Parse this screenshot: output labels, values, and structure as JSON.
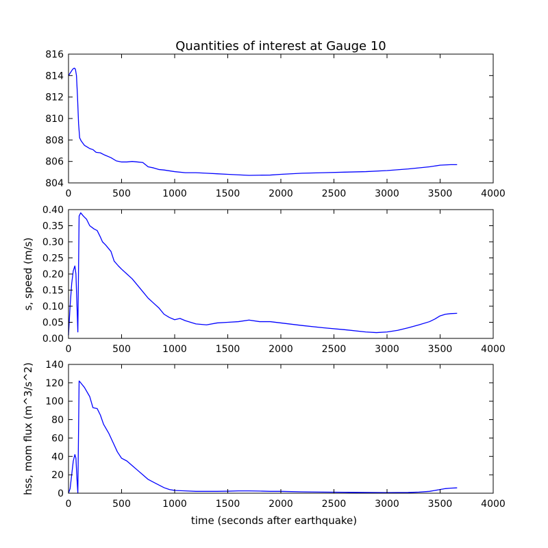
{
  "title": "Quantities of interest at Gauge 10",
  "colors": {
    "series": "#0000ff",
    "axes": "#000000",
    "background": "#ffffff"
  },
  "chart_data": [
    {
      "type": "line",
      "title": "Quantities of interest at Gauge 10",
      "xlabel": "",
      "ylabel": "",
      "xlim": [
        0,
        4000
      ],
      "ylim": [
        804,
        816
      ],
      "xticks": [
        "0",
        "500",
        "1000",
        "1500",
        "2000",
        "2500",
        "3000",
        "3500",
        "4000"
      ],
      "yticks": [
        "804",
        "806",
        "808",
        "810",
        "812",
        "814",
        "816"
      ],
      "grid": false,
      "x": [
        0,
        20,
        40,
        55,
        65,
        75,
        85,
        95,
        105,
        120,
        150,
        200,
        230,
        260,
        300,
        340,
        400,
        450,
        500,
        550,
        600,
        650,
        700,
        750,
        800,
        850,
        900,
        1000,
        1100,
        1200,
        1300,
        1400,
        1500,
        1600,
        1700,
        1800,
        1900,
        2000,
        2200,
        2400,
        2600,
        2800,
        3000,
        3200,
        3400,
        3500,
        3600,
        3660
      ],
      "series": [
        {
          "values": [
            814.0,
            814.3,
            814.6,
            814.7,
            814.6,
            814.0,
            812.0,
            809.5,
            808.2,
            807.9,
            807.5,
            807.2,
            807.1,
            806.85,
            806.8,
            806.6,
            806.35,
            806.05,
            805.95,
            805.95,
            806.0,
            805.95,
            805.9,
            805.5,
            805.4,
            805.25,
            805.2,
            805.05,
            804.95,
            804.95,
            804.9,
            804.85,
            804.8,
            804.75,
            804.7,
            804.72,
            804.73,
            804.8,
            804.9,
            804.95,
            805.0,
            805.05,
            805.15,
            805.3,
            805.5,
            805.65,
            805.7,
            805.7
          ]
        }
      ]
    },
    {
      "type": "line",
      "xlabel": "",
      "ylabel": "s, speed (m/s)",
      "xlim": [
        0,
        4000
      ],
      "ylim": [
        0,
        0.4
      ],
      "xticks": [
        "0",
        "500",
        "1000",
        "1500",
        "2000",
        "2500",
        "3000",
        "3500",
        "4000"
      ],
      "yticks": [
        "0.00",
        "0.05",
        "0.10",
        "0.15",
        "0.20",
        "0.25",
        "0.30",
        "0.35",
        "0.40"
      ],
      "grid": false,
      "x": [
        0,
        15,
        30,
        45,
        60,
        70,
        80,
        88,
        100,
        115,
        140,
        170,
        200,
        240,
        270,
        300,
        320,
        350,
        400,
        430,
        470,
        500,
        550,
        600,
        650,
        700,
        750,
        800,
        850,
        900,
        950,
        1000,
        1050,
        1100,
        1200,
        1300,
        1400,
        1500,
        1600,
        1700,
        1800,
        1900,
        2000,
        2200,
        2400,
        2600,
        2800,
        2900,
        3000,
        3100,
        3200,
        3300,
        3400,
        3450,
        3500,
        3550,
        3600,
        3660
      ],
      "series": [
        {
          "values": [
            0.01,
            0.1,
            0.17,
            0.21,
            0.225,
            0.2,
            0.1,
            0.02,
            0.38,
            0.39,
            0.38,
            0.37,
            0.35,
            0.34,
            0.335,
            0.315,
            0.3,
            0.29,
            0.27,
            0.24,
            0.225,
            0.215,
            0.2,
            0.185,
            0.165,
            0.145,
            0.125,
            0.11,
            0.095,
            0.075,
            0.065,
            0.058,
            0.062,
            0.055,
            0.045,
            0.042,
            0.048,
            0.05,
            0.052,
            0.057,
            0.052,
            0.052,
            0.048,
            0.04,
            0.033,
            0.027,
            0.02,
            0.018,
            0.02,
            0.025,
            0.033,
            0.042,
            0.052,
            0.06,
            0.07,
            0.075,
            0.077,
            0.078
          ]
        }
      ]
    },
    {
      "type": "line",
      "xlabel": "time (seconds after earthquake)",
      "ylabel": "hss, mom flux (m^3/s^2)",
      "xlim": [
        0,
        4000
      ],
      "ylim": [
        0,
        140
      ],
      "xticks": [
        "0",
        "500",
        "1000",
        "1500",
        "2000",
        "2500",
        "3000",
        "3500",
        "4000"
      ],
      "yticks": [
        "0",
        "20",
        "40",
        "60",
        "80",
        "100",
        "120",
        "140"
      ],
      "grid": false,
      "x": [
        0,
        15,
        30,
        45,
        60,
        70,
        80,
        88,
        100,
        115,
        150,
        200,
        230,
        270,
        300,
        330,
        380,
        420,
        460,
        500,
        550,
        600,
        650,
        700,
        750,
        800,
        850,
        900,
        950,
        1000,
        1100,
        1200,
        1300,
        1400,
        1500,
        1600,
        1700,
        1800,
        1900,
        2000,
        2200,
        2400,
        2600,
        2800,
        3000,
        3200,
        3300,
        3400,
        3450,
        3500,
        3550,
        3600,
        3660
      ],
      "series": [
        {
          "values": [
            0,
            5,
            20,
            35,
            42,
            38,
            15,
            0,
            122,
            120,
            115,
            105,
            93,
            92,
            85,
            75,
            65,
            55,
            45,
            38,
            35,
            30,
            25,
            20,
            15,
            12,
            9,
            6,
            4,
            3,
            2.5,
            2,
            2,
            2,
            2.2,
            2.5,
            2.5,
            2.3,
            2,
            2,
            1.5,
            1.2,
            1,
            0.8,
            0.6,
            0.8,
            1.2,
            2,
            3,
            4,
            5,
            5.5,
            5.8
          ]
        }
      ]
    }
  ]
}
